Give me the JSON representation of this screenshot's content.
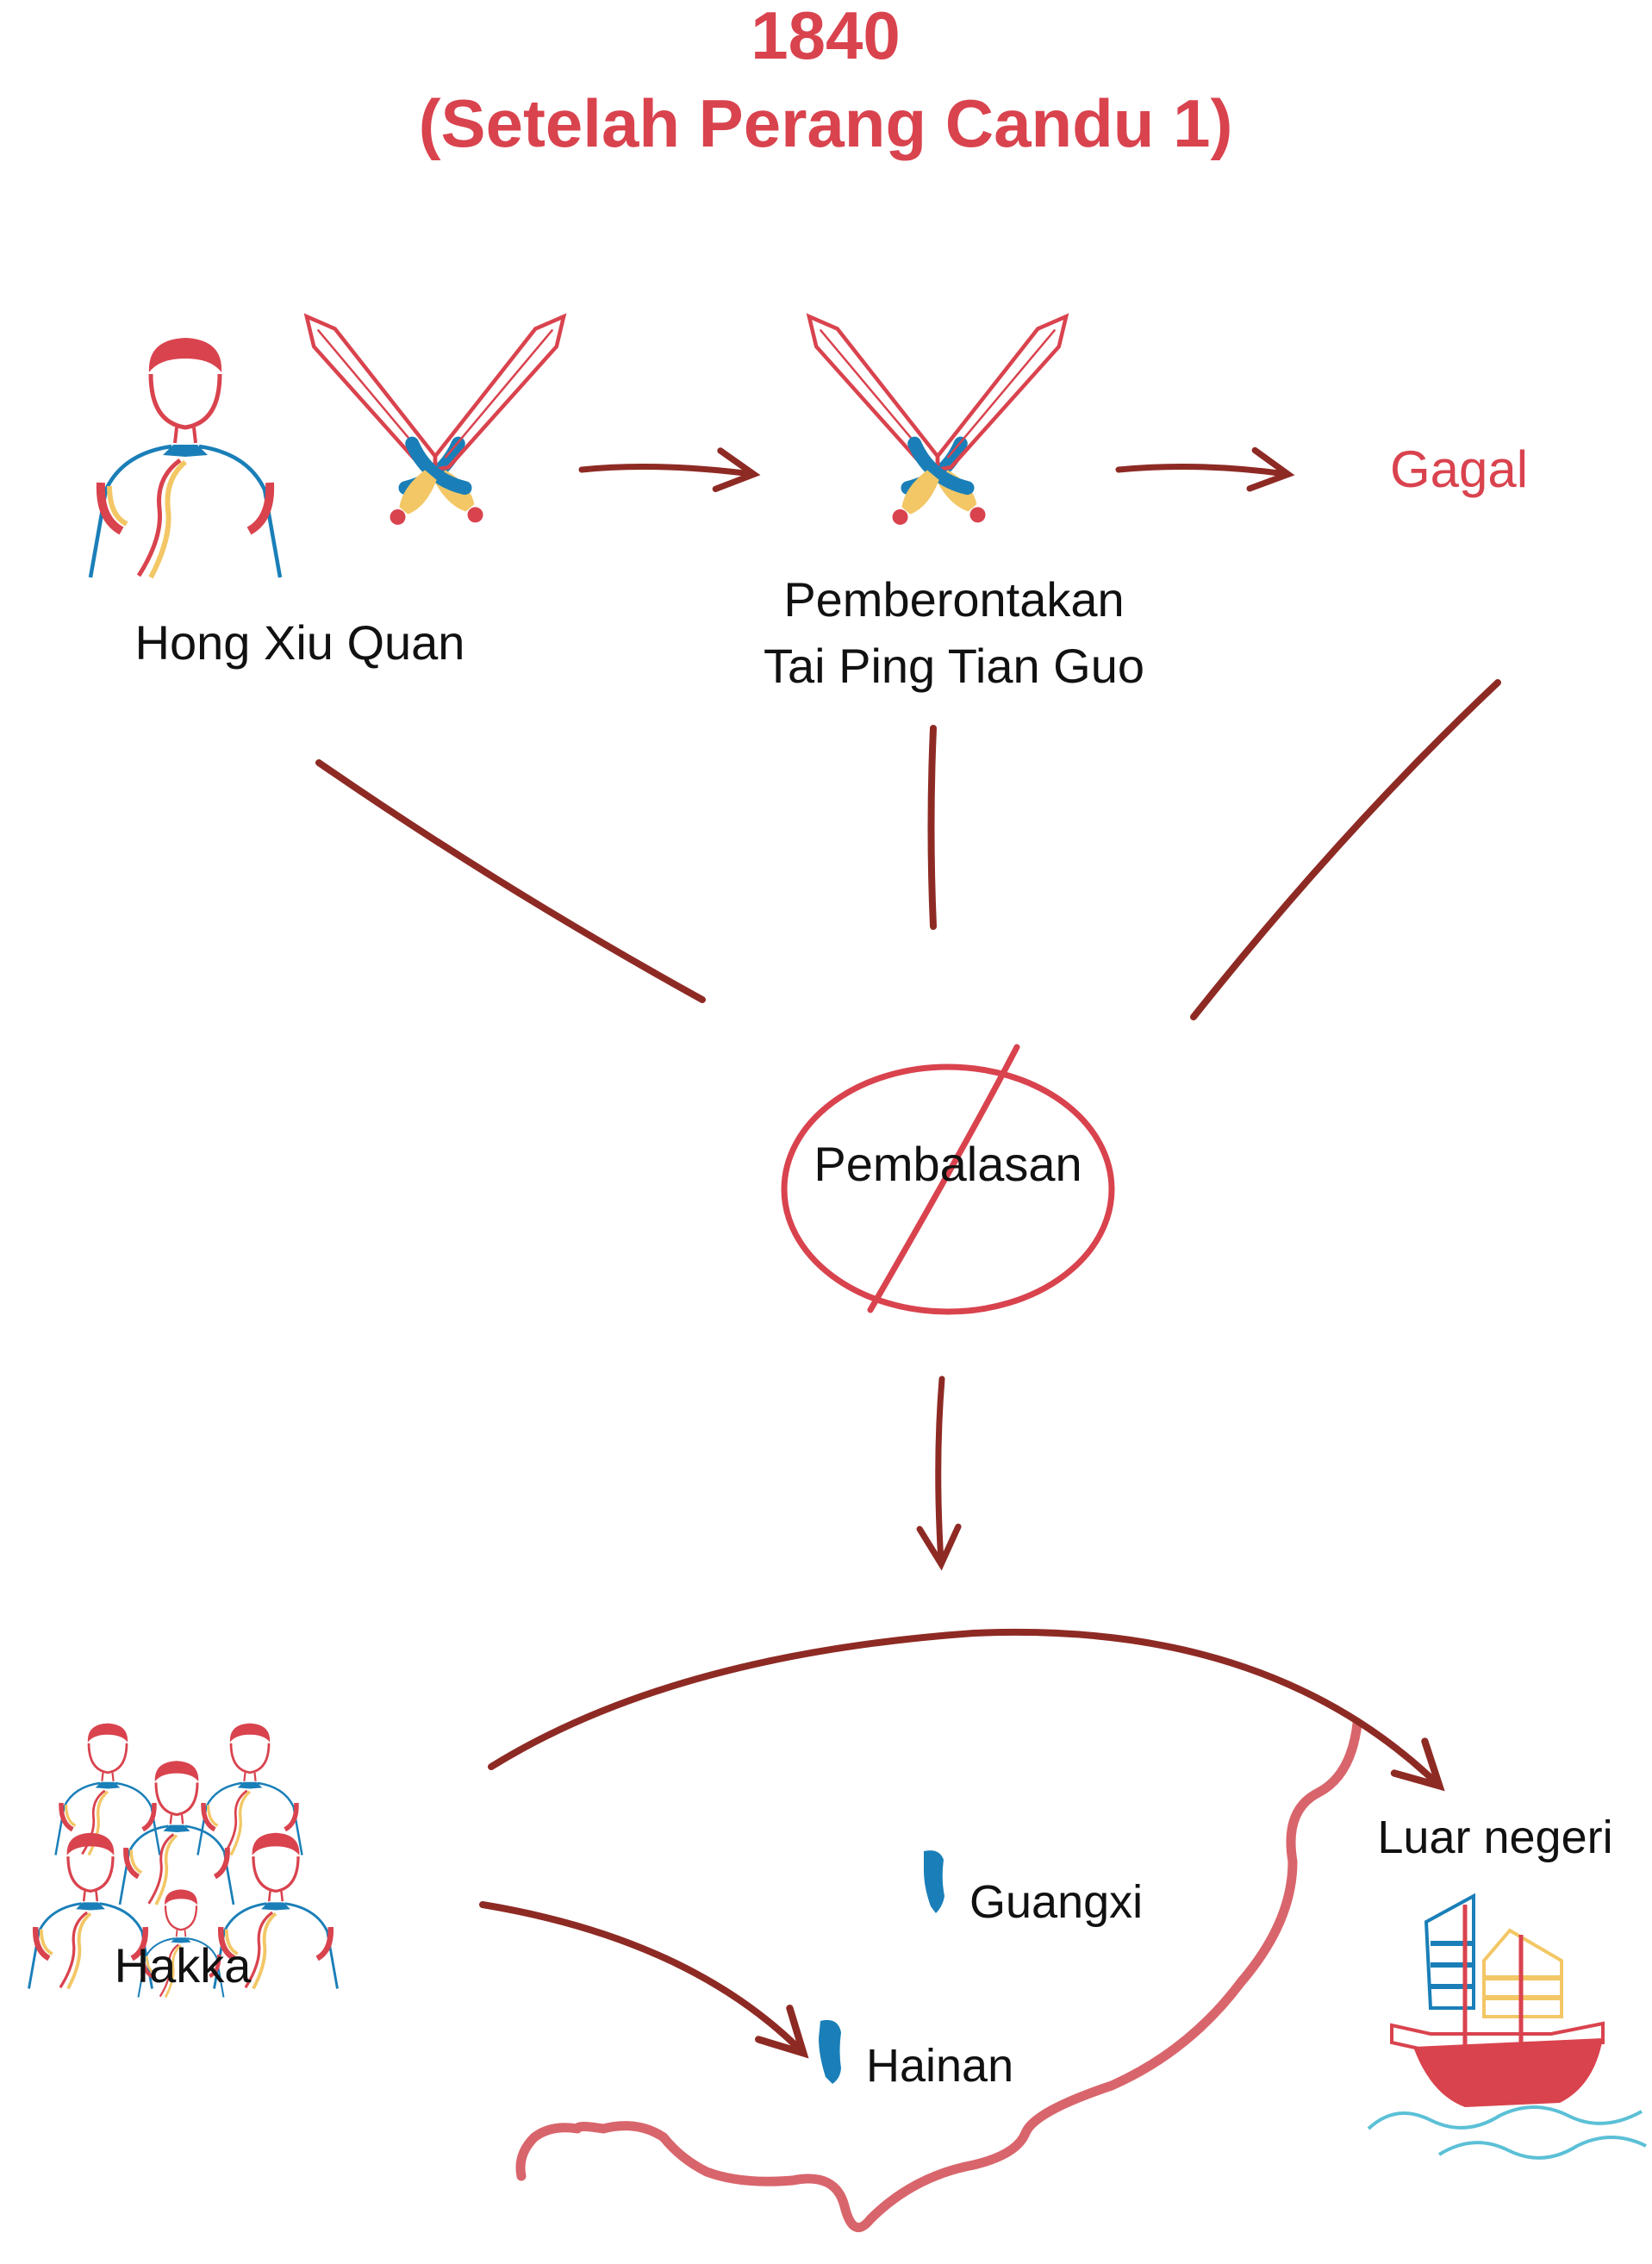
{
  "title": {
    "year": "1840",
    "subtitle": "(Setelah Perang Candu 1)"
  },
  "nodes": {
    "leader": "Hong Xiu Quan",
    "rebellion_line1": "Pemberontakan",
    "rebellion_line2": "Tai Ping Tian Guo",
    "outcome": "Gagal",
    "retaliation": "Pembalasan",
    "people": "Hakka",
    "place_guangxi": "Guangxi",
    "place_hainan": "Hainan",
    "abroad": "Luar negeri"
  },
  "colors": {
    "title_red": "#d9434e",
    "arrow_brown": "#8e2a24",
    "blue": "#1a7fb8",
    "yellow": "#f3c766",
    "ink": "#111111",
    "coast": "#d9656c"
  }
}
